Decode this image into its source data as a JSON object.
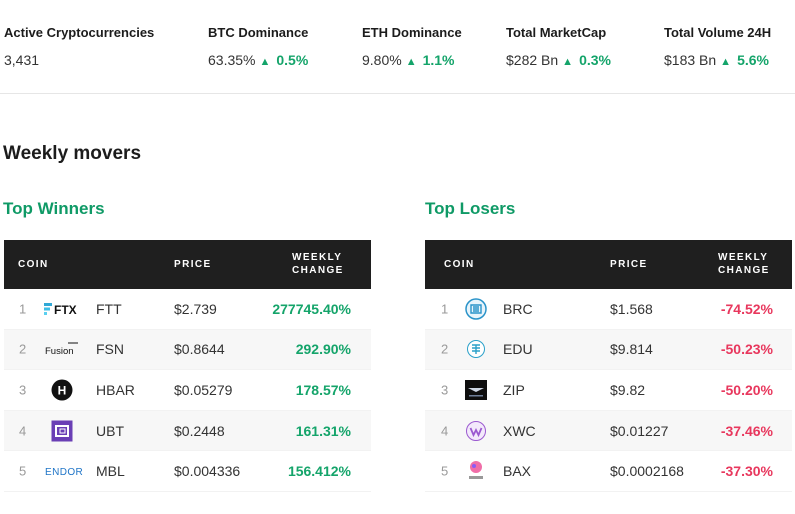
{
  "stats": [
    {
      "label": "Active Cryptocurrencies",
      "value": "3,431",
      "change": ""
    },
    {
      "label": "BTC Dominance",
      "value": "63.35%",
      "change": "0.5%"
    },
    {
      "label": "ETH Dominance",
      "value": "9.80%",
      "change": "1.1%"
    },
    {
      "label": "Total MarketCap",
      "value": "$282 Bn",
      "change": "0.3%"
    },
    {
      "label": "Total Volume 24H",
      "value": "$183 Bn",
      "change": "5.6%"
    }
  ],
  "triangle": "▲",
  "section_title": "Weekly movers",
  "winners": {
    "title": "Top Winners",
    "headers": {
      "coin": "COIN",
      "price": "PRICE",
      "weekly_1": "WEEKLY",
      "weekly_2": "CHANGE"
    },
    "rows": [
      {
        "rank": "1",
        "logo_text": "FTX",
        "symbol": "FTT",
        "price": "$2.739",
        "change": "277745.40%"
      },
      {
        "rank": "2",
        "logo_text": "Fusion",
        "symbol": "FSN",
        "price": "$0.8644",
        "change": "292.90%"
      },
      {
        "rank": "3",
        "logo_text": "H",
        "symbol": "HBAR",
        "price": "$0.05279",
        "change": "178.57%"
      },
      {
        "rank": "4",
        "logo_text": "",
        "symbol": "UBT",
        "price": "$0.2448",
        "change": "161.31%"
      },
      {
        "rank": "5",
        "logo_text": "ENDOR",
        "symbol": "MBL",
        "price": "$0.004336",
        "change": "156.412%"
      }
    ]
  },
  "losers": {
    "title": "Top Losers",
    "headers": {
      "coin": "COIN",
      "price": "PRICE",
      "weekly_1": "WEEKLY",
      "weekly_2": "CHANGE"
    },
    "rows": [
      {
        "rank": "1",
        "symbol": "BRC",
        "price": "$1.568",
        "change": "-74.52%"
      },
      {
        "rank": "2",
        "symbol": "EDU",
        "price": "$9.814",
        "change": "-50.23%"
      },
      {
        "rank": "3",
        "symbol": "ZIP",
        "price": "$9.82",
        "change": "-50.20%"
      },
      {
        "rank": "4",
        "symbol": "XWC",
        "price": "$0.01227",
        "change": "-37.46%"
      },
      {
        "rank": "5",
        "symbol": "BAX",
        "price": "$0.0002168",
        "change": "-37.30%"
      }
    ]
  },
  "colors": {
    "positive": "#14a46a",
    "negative": "#e8375d",
    "header_bg": "#1f1f1f",
    "panel_title": "#0f9a66"
  }
}
